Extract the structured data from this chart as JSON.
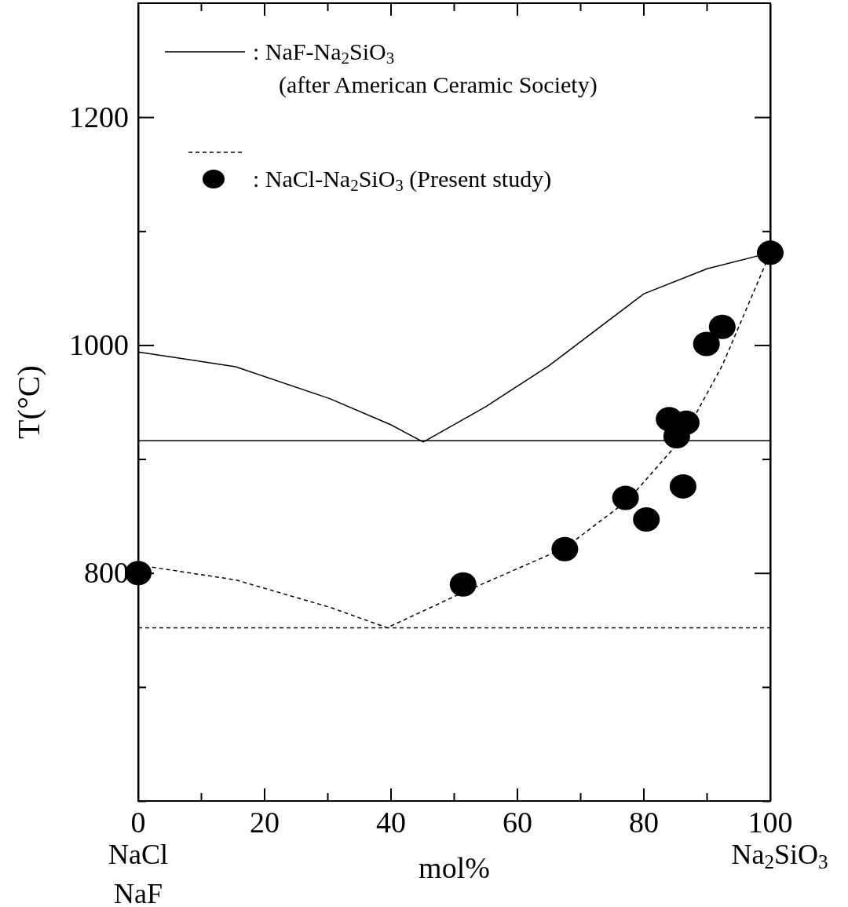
{
  "chart_data": {
    "type": "line",
    "xlabel": "mol%",
    "ylabel": "T(°C)",
    "xlim": [
      0,
      100
    ],
    "ylim": [
      600,
      1300
    ],
    "xticks": [
      0,
      {
        "value": 10,
        "label": null
      },
      20,
      {
        "value": 30,
        "label": null
      },
      40,
      {
        "value": 50,
        "label": null
      },
      60,
      {
        "value": 70,
        "label": null
      },
      80,
      {
        "value": 90,
        "label": null
      },
      100
    ],
    "yticks": [
      {
        "value": 600,
        "label": null
      },
      {
        "value": 700,
        "label": null
      },
      800,
      {
        "value": 900,
        "label": null
      },
      1000,
      {
        "value": 1100,
        "label": null
      },
      1200
    ],
    "legend": "top left",
    "grid": false,
    "series": [
      {
        "name": ": NaF-Na$_{2}$SiO$_{3}$\n(after American Ceramic Society)",
        "color": "#000000",
        "line_style": "solid",
        "x": [
          0,
          15.4,
          30.3,
          40,
          45.1,
          55,
          65,
          80,
          90,
          100
        ],
        "values": [
          994,
          981,
          953,
          930,
          915,
          946,
          982,
          1045,
          1067,
          1081
        ]
      },
      {
        "color": "#000000",
        "line_style": "dashed",
        "x": [
          0,
          15.4,
          30.3,
          39.4,
          51.4,
          67.5,
          77.5,
          86.2,
          92.4,
          97.4,
          100
        ],
        "values": [
          807,
          794,
          770,
          752,
          783,
          822,
          864,
          919,
          982,
          1047,
          1081
        ]
      },
      {
        "type": "scatter",
        "name": ": NaCl-Na$_{2}$SiO$_{3}$ (Present study)",
        "color": "#000000",
        "marker": "circle",
        "x": [
          0,
          51.4,
          67.5,
          77.1,
          80.4,
          84,
          85.2,
          86.7,
          86.2,
          89.9,
          92.4,
          100
        ],
        "values": [
          800,
          790,
          821,
          866,
          847,
          935,
          920,
          932,
          876,
          1001,
          1016,
          1081
        ]
      }
    ],
    "ref_lines": [
      {
        "axis": "y",
        "value": 916,
        "color": "#000000",
        "line_style": "solid"
      },
      {
        "axis": "y",
        "value": 752,
        "color": "#000000",
        "line_style": "dashed"
      }
    ],
    "annotations": [
      "NaCl\nNaF",
      "Na$_{2}$SiO$_{3}$"
    ]
  }
}
